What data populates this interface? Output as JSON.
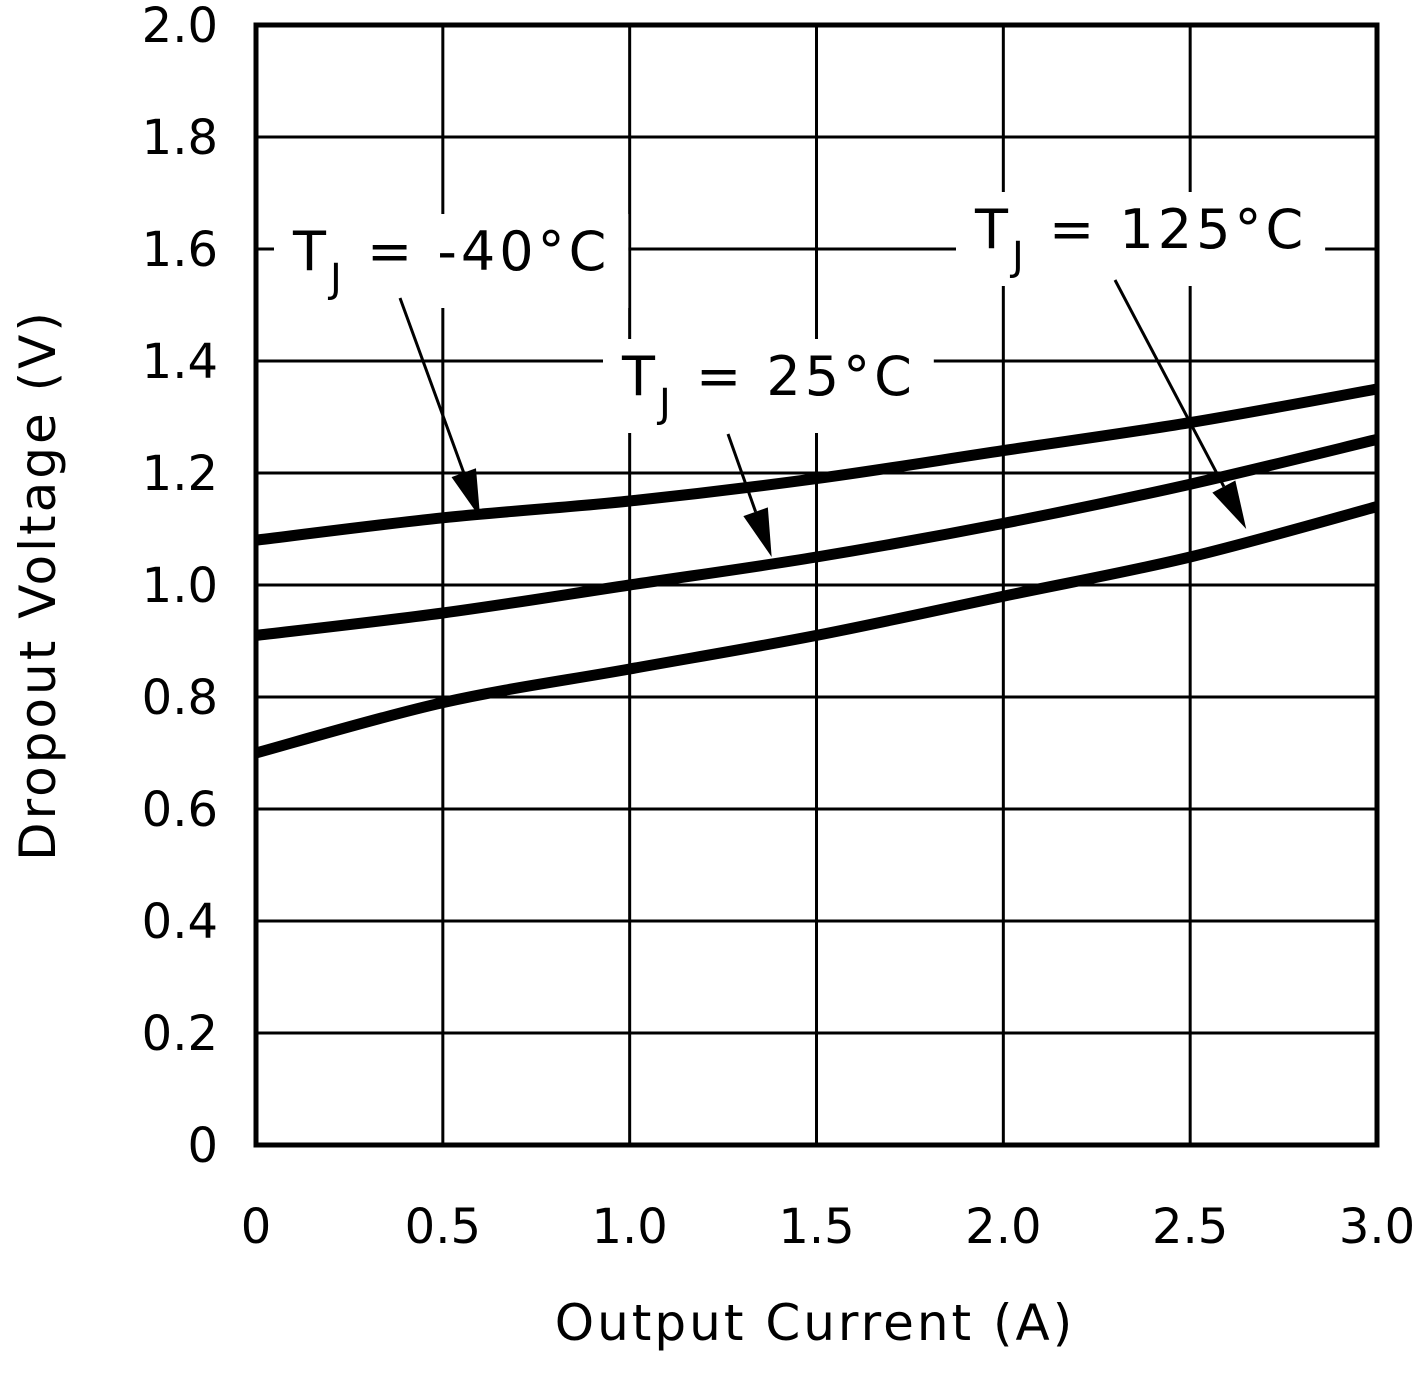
{
  "chart_data": {
    "type": "line",
    "xlabel": "Output Current (A)",
    "ylabel": "Dropout Voltage (V)",
    "xlim": [
      0,
      3.0
    ],
    "ylim": [
      0,
      2.0
    ],
    "x_ticks": [
      "0",
      "0.5",
      "1.0",
      "1.5",
      "2.0",
      "2.5",
      "3.0"
    ],
    "y_ticks": [
      "0",
      "0.2",
      "0.4",
      "0.6",
      "0.8",
      "1.0",
      "1.2",
      "1.4",
      "1.6",
      "1.8",
      "2.0"
    ],
    "grid": true,
    "series": [
      {
        "name": "T_J = -40°C",
        "x": [
          0,
          0.5,
          1.0,
          1.5,
          2.0,
          2.5,
          3.0
        ],
        "values": [
          1.08,
          1.12,
          1.15,
          1.19,
          1.24,
          1.29,
          1.35
        ]
      },
      {
        "name": "T_J = 25°C",
        "x": [
          0,
          0.5,
          1.0,
          1.5,
          2.0,
          2.5,
          3.0
        ],
        "values": [
          0.91,
          0.95,
          1.0,
          1.05,
          1.11,
          1.18,
          1.26
        ]
      },
      {
        "name": "T_J = 125°C",
        "x": [
          0,
          0.5,
          1.0,
          1.5,
          2.0,
          2.5,
          3.0
        ],
        "values": [
          0.7,
          0.79,
          0.85,
          0.91,
          0.98,
          1.05,
          1.14
        ]
      }
    ],
    "annotations": [
      {
        "series": 0,
        "prefix": "T",
        "subscript": "J",
        "suffix": " = -40°C",
        "target_x": 0.6,
        "target_y": 1.12
      },
      {
        "series": 1,
        "prefix": "T",
        "subscript": "J",
        "suffix": " = 25°C",
        "target_x": 1.38,
        "target_y": 1.05
      },
      {
        "series": 2,
        "prefix": "T",
        "subscript": "J",
        "suffix": " = 125°C",
        "target_x": 2.65,
        "target_y": 1.1
      }
    ]
  }
}
